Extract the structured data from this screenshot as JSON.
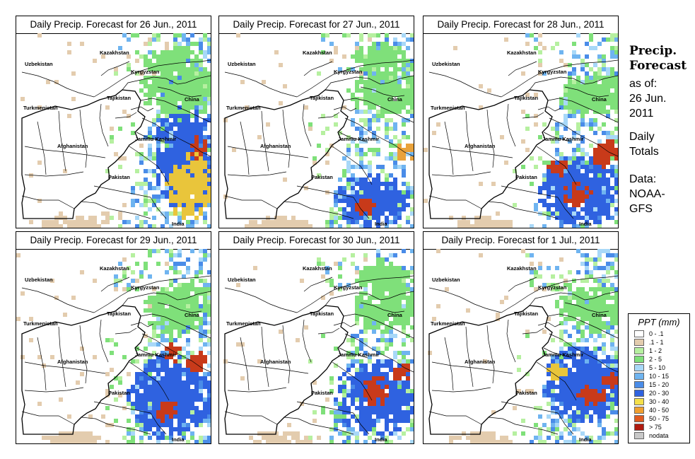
{
  "panels": [
    {
      "title": "Daily Precip. Forecast for  26 Jun., 2011",
      "seed": 11,
      "blobs": [
        [
          0.86,
          0.62,
          0.16,
          0.3,
          "#2f62e0"
        ],
        [
          0.88,
          0.78,
          0.12,
          0.18,
          "#e9c53b"
        ],
        [
          0.93,
          0.58,
          0.05,
          0.06,
          "#c83a1a"
        ],
        [
          0.84,
          0.28,
          0.22,
          0.14,
          "#7fe07a"
        ],
        [
          0.8,
          0.13,
          0.16,
          0.08,
          "#7fe07a"
        ],
        [
          0.3,
          0.97,
          0.18,
          0.04,
          "#e3ccae"
        ]
      ]
    },
    {
      "title": "Daily Precip. Forecast for  27 Jun., 2011",
      "seed": 23,
      "blobs": [
        [
          0.78,
          0.85,
          0.2,
          0.14,
          "#2f62e0"
        ],
        [
          0.74,
          0.88,
          0.06,
          0.04,
          "#c83a1a"
        ],
        [
          0.95,
          0.6,
          0.05,
          0.05,
          "#e9a23b"
        ],
        [
          0.85,
          0.3,
          0.2,
          0.12,
          "#7fe07a"
        ],
        [
          0.82,
          0.12,
          0.15,
          0.08,
          "#7fe07a"
        ],
        [
          0.3,
          0.97,
          0.18,
          0.04,
          "#e3ccae"
        ]
      ]
    },
    {
      "title": "Daily Precip. Forecast for  28 Jun., 2011",
      "seed": 37,
      "blobs": [
        [
          0.8,
          0.8,
          0.22,
          0.18,
          "#2f62e0"
        ],
        [
          0.78,
          0.82,
          0.08,
          0.06,
          "#c83a1a"
        ],
        [
          0.68,
          0.68,
          0.05,
          0.05,
          "#c83a1a"
        ],
        [
          0.92,
          0.6,
          0.08,
          0.08,
          "#c83a1a"
        ],
        [
          0.86,
          0.3,
          0.18,
          0.12,
          "#7fe07a"
        ],
        [
          0.3,
          0.97,
          0.18,
          0.04,
          "#e3ccae"
        ]
      ]
    },
    {
      "title": "Daily Precip. Forecast for  29 Jun., 2011",
      "seed": 41,
      "blobs": [
        [
          0.78,
          0.75,
          0.22,
          0.22,
          "#2f62e0"
        ],
        [
          0.76,
          0.82,
          0.06,
          0.06,
          "#c83a1a"
        ],
        [
          0.92,
          0.58,
          0.06,
          0.06,
          "#c83a1a"
        ],
        [
          0.8,
          0.52,
          0.05,
          0.05,
          "#c83a1a"
        ],
        [
          0.82,
          0.3,
          0.18,
          0.14,
          "#7fe07a"
        ],
        [
          0.3,
          0.97,
          0.18,
          0.04,
          "#e3ccae"
        ]
      ]
    },
    {
      "title": "Daily Precip. Forecast for  30 Jun., 2011",
      "seed": 53,
      "blobs": [
        [
          0.8,
          0.75,
          0.22,
          0.2,
          "#2f62e0"
        ],
        [
          0.8,
          0.72,
          0.07,
          0.08,
          "#c83a1a"
        ],
        [
          0.93,
          0.62,
          0.05,
          0.05,
          "#c83a1a"
        ],
        [
          0.86,
          0.3,
          0.2,
          0.12,
          "#7fe07a"
        ],
        [
          0.84,
          0.14,
          0.15,
          0.08,
          "#7fe07a"
        ],
        [
          0.3,
          0.97,
          0.18,
          0.04,
          "#e3ccae"
        ]
      ]
    },
    {
      "title": "Daily Precip. Forecast for  1 Jul., 2011",
      "seed": 67,
      "blobs": [
        [
          0.82,
          0.68,
          0.22,
          0.2,
          "#2f62e0"
        ],
        [
          0.85,
          0.74,
          0.08,
          0.05,
          "#c83a1a"
        ],
        [
          0.95,
          0.66,
          0.04,
          0.05,
          "#c83a1a"
        ],
        [
          0.68,
          0.62,
          0.05,
          0.05,
          "#e9c53b"
        ],
        [
          0.86,
          0.3,
          0.2,
          0.12,
          "#7fe07a"
        ],
        [
          0.3,
          0.97,
          0.18,
          0.04,
          "#e3ccae"
        ]
      ]
    }
  ],
  "map_labels": {
    "kazakhstan": "Kazakhstan",
    "uzbekistan": "Uzbekistan",
    "kyrgyzstan": "Kyrgyzstan",
    "tajikistan": "Tajikistan",
    "turkmenistan": "Turkmenistan",
    "china": "China",
    "afghanistan": "Afghanistan",
    "jammu_kashmir": "Jammu Kashmir",
    "pakistan": "Pakistan",
    "india": "India"
  },
  "side_info": {
    "title_line1": "Precip.",
    "title_line2": "Forecast",
    "asof_line1": "as of:",
    "asof_line2": "26 Jun.",
    "asof_line3": "2011",
    "daily_line1": "Daily",
    "daily_line2": "Totals",
    "data_line1": "Data:",
    "data_line2": "NOAA-",
    "data_line3": "GFS"
  },
  "legend": {
    "title": "PPT (mm)",
    "items": [
      {
        "label": "0 - .1",
        "color": "#ffffff"
      },
      {
        "label": ".1 - 1",
        "color": "#e3ccae"
      },
      {
        "label": "1 - 2",
        "color": "#b6f0a0"
      },
      {
        "label": "2 - 5",
        "color": "#7fe07a"
      },
      {
        "label": "5 - 10",
        "color": "#a8d8f8"
      },
      {
        "label": "10 - 15",
        "color": "#6fb4f0"
      },
      {
        "label": "15 - 20",
        "color": "#4a8ce8"
      },
      {
        "label": "20 - 30",
        "color": "#2f62e0"
      },
      {
        "label": "30 - 40",
        "color": "#f5e04a"
      },
      {
        "label": "40 - 50",
        "color": "#f0a030"
      },
      {
        "label": "50 - 75",
        "color": "#e05a20"
      },
      {
        "label": "> 75",
        "color": "#b01a10"
      },
      {
        "label": "nodata",
        "color": "#c8c8c8"
      }
    ]
  }
}
